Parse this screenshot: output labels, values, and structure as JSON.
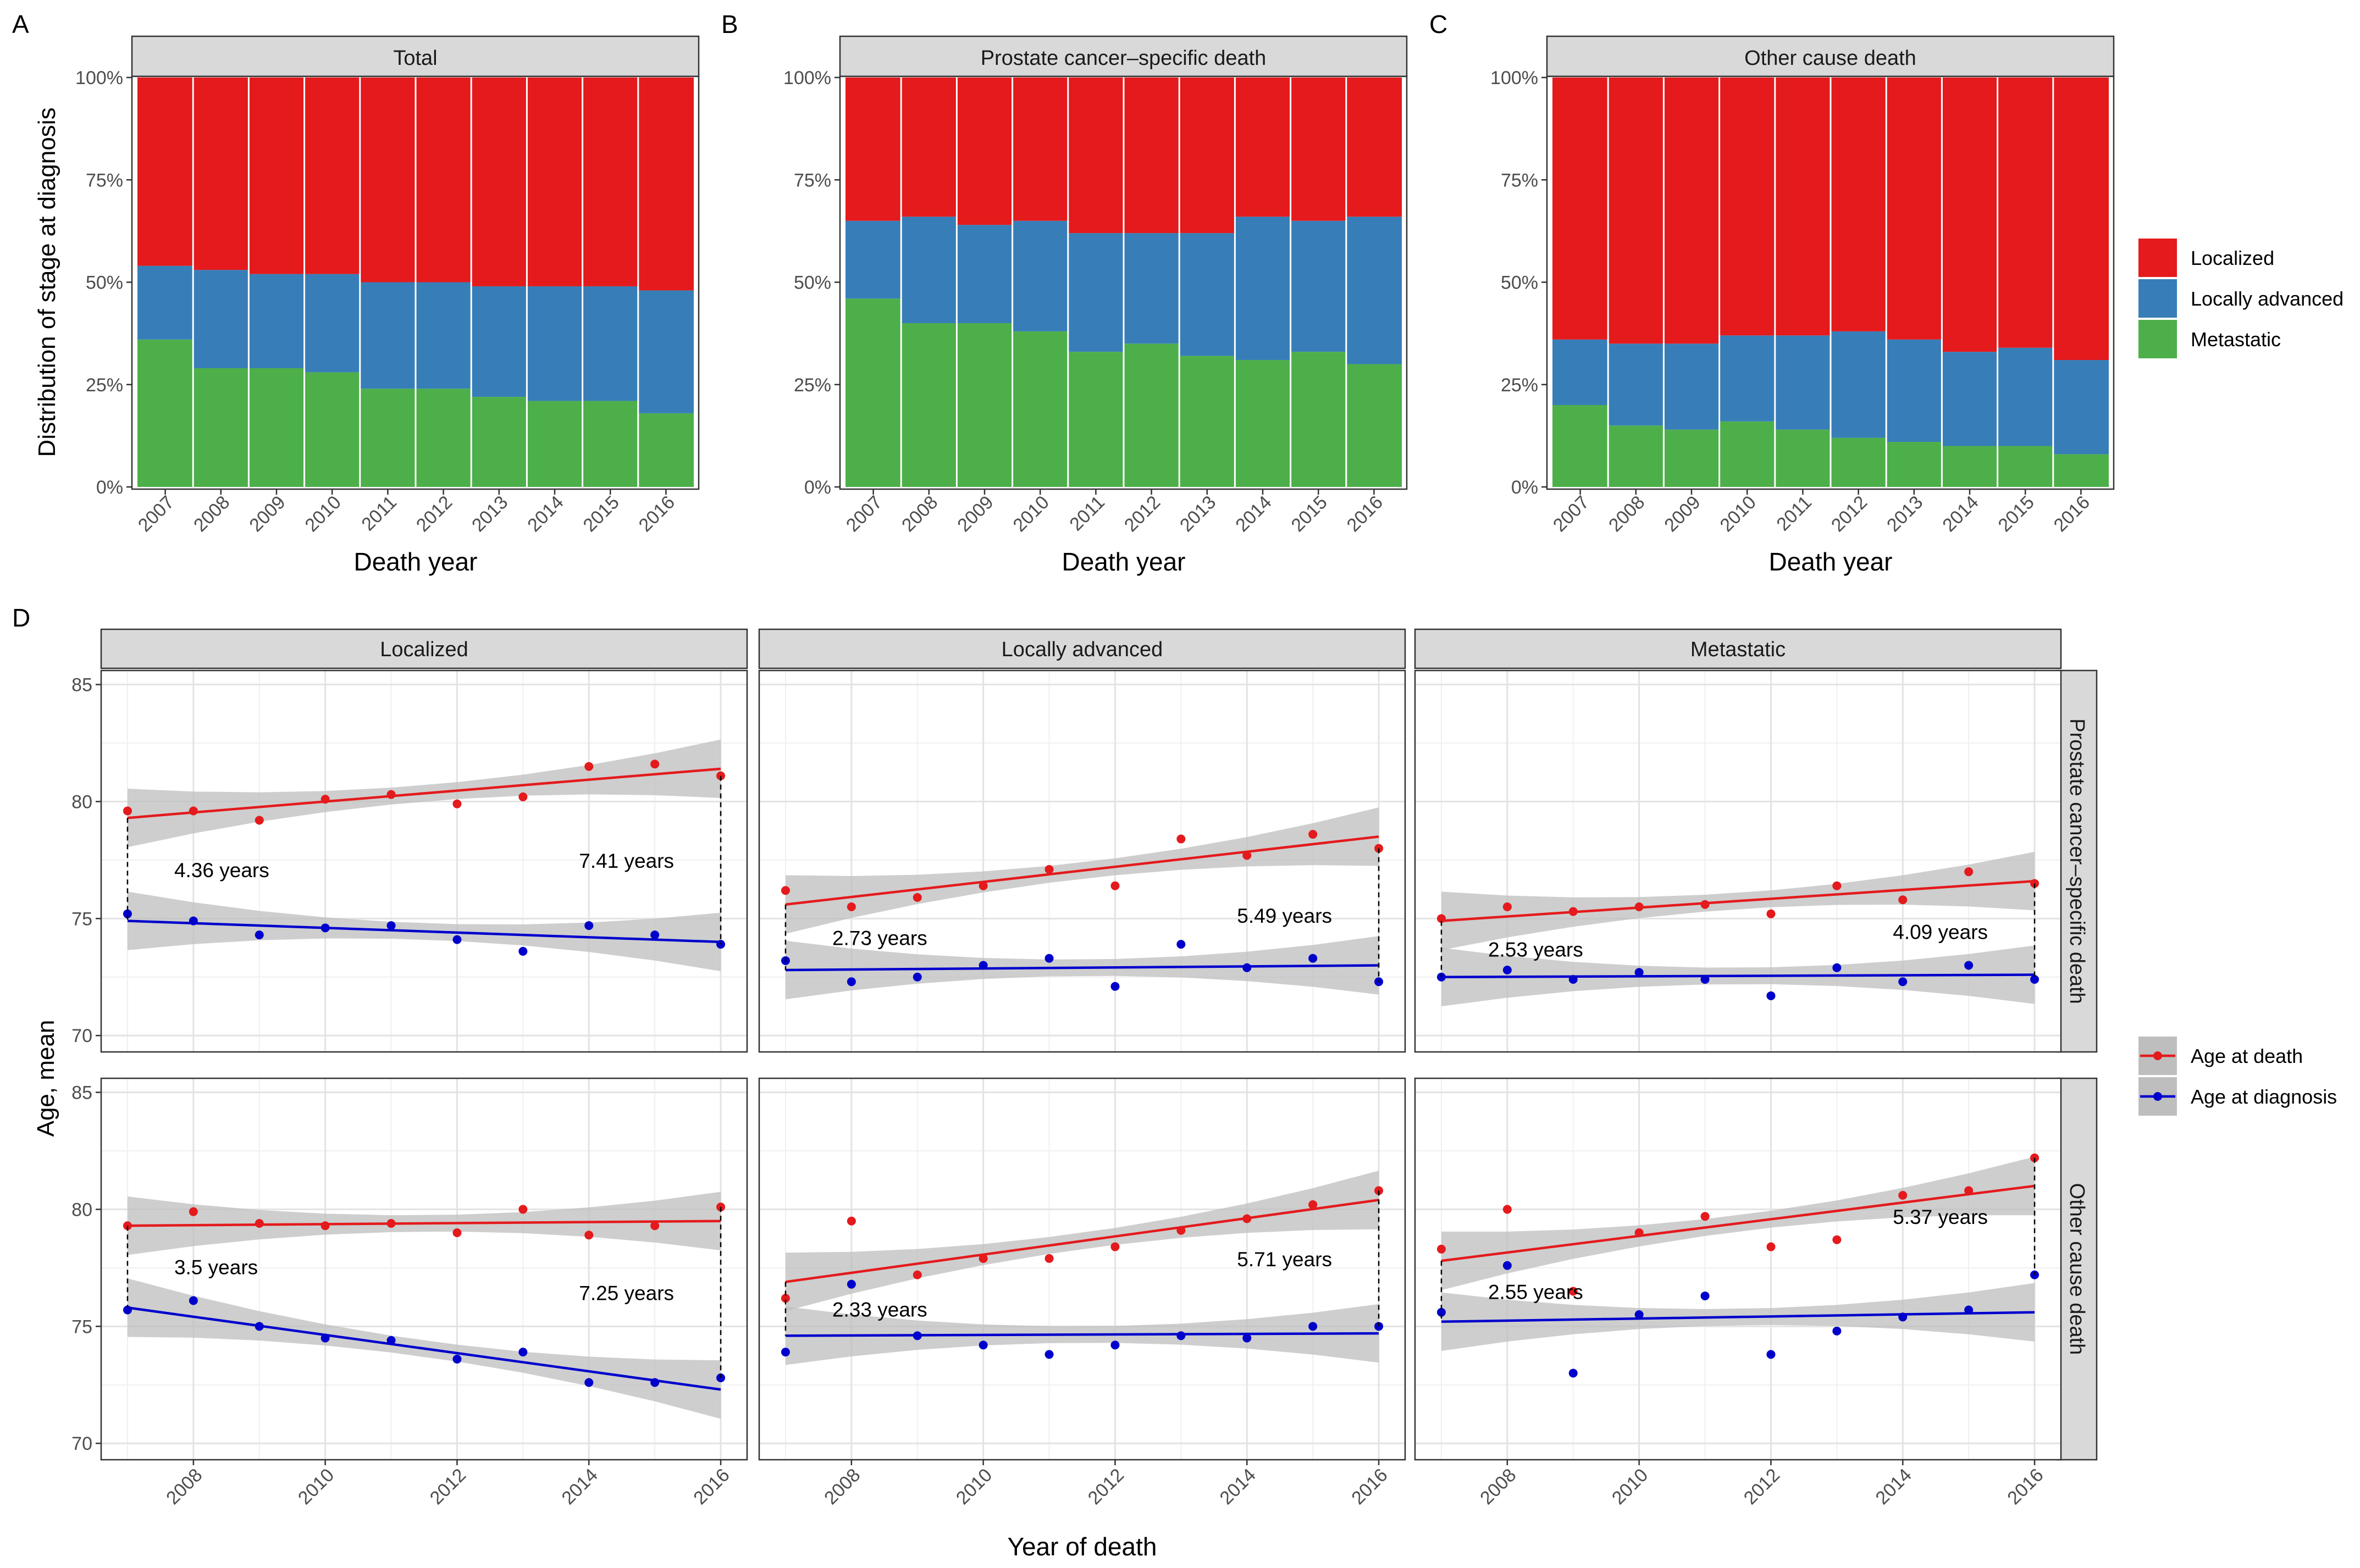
{
  "colors": {
    "localized": "#E41A1C",
    "locally_advanced": "#377EB8",
    "metastatic": "#4DAF4A",
    "age_at_death": "#E41A1C",
    "age_at_diagnosis": "#0000CD",
    "strip_bg": "#D9D9D9",
    "ci_band": "#BEBEBE"
  },
  "legends": {
    "stage": {
      "entries": [
        "Localized",
        "Locally advanced",
        "Metastatic"
      ]
    },
    "age": {
      "entries": [
        "Age at death",
        "Age at diagnosis"
      ]
    }
  },
  "chart_data": [
    {
      "type": "bar",
      "stacked": true,
      "panel_letter": "A",
      "facet": "Total",
      "xlabel": "Death year",
      "ylabel": "Distribution of stage at diagnosis",
      "yticks": [
        "0%",
        "25%",
        "50%",
        "75%",
        "100%"
      ],
      "ylim": [
        0,
        1
      ],
      "categories": [
        "2007",
        "2008",
        "2009",
        "2010",
        "2011",
        "2012",
        "2013",
        "2014",
        "2015",
        "2016"
      ],
      "series": [
        {
          "name": "Metastatic",
          "values": [
            0.36,
            0.29,
            0.29,
            0.28,
            0.24,
            0.24,
            0.22,
            0.21,
            0.21,
            0.18
          ]
        },
        {
          "name": "Locally advanced",
          "values": [
            0.18,
            0.24,
            0.23,
            0.24,
            0.26,
            0.26,
            0.27,
            0.28,
            0.28,
            0.3
          ]
        },
        {
          "name": "Localized",
          "values": [
            0.46,
            0.47,
            0.48,
            0.48,
            0.5,
            0.5,
            0.51,
            0.51,
            0.51,
            0.52
          ]
        }
      ]
    },
    {
      "type": "bar",
      "stacked": true,
      "panel_letter": "B",
      "facet": "Prostate cancer–specific death",
      "xlabel": "Death year",
      "yticks": [
        "0%",
        "25%",
        "50%",
        "75%",
        "100%"
      ],
      "ylim": [
        0,
        1
      ],
      "categories": [
        "2007",
        "2008",
        "2009",
        "2010",
        "2011",
        "2012",
        "2013",
        "2014",
        "2015",
        "2016"
      ],
      "series": [
        {
          "name": "Metastatic",
          "values": [
            0.46,
            0.4,
            0.4,
            0.38,
            0.33,
            0.35,
            0.32,
            0.31,
            0.33,
            0.3
          ]
        },
        {
          "name": "Locally advanced",
          "values": [
            0.19,
            0.26,
            0.24,
            0.27,
            0.29,
            0.27,
            0.3,
            0.35,
            0.32,
            0.36
          ]
        },
        {
          "name": "Localized",
          "values": [
            0.35,
            0.34,
            0.36,
            0.35,
            0.38,
            0.38,
            0.38,
            0.34,
            0.35,
            0.34
          ]
        }
      ]
    },
    {
      "type": "bar",
      "stacked": true,
      "panel_letter": "C",
      "facet": "Other cause death",
      "xlabel": "Death year",
      "yticks": [
        "0%",
        "25%",
        "50%",
        "75%",
        "100%"
      ],
      "ylim": [
        0,
        1
      ],
      "categories": [
        "2007",
        "2008",
        "2009",
        "2010",
        "2011",
        "2012",
        "2013",
        "2014",
        "2015",
        "2016"
      ],
      "series": [
        {
          "name": "Metastatic",
          "values": [
            0.2,
            0.15,
            0.14,
            0.16,
            0.14,
            0.12,
            0.11,
            0.1,
            0.1,
            0.08
          ]
        },
        {
          "name": "Locally advanced",
          "values": [
            0.16,
            0.2,
            0.21,
            0.21,
            0.23,
            0.26,
            0.25,
            0.23,
            0.24,
            0.23
          ]
        },
        {
          "name": "Localized",
          "values": [
            0.64,
            0.65,
            0.65,
            0.63,
            0.63,
            0.62,
            0.64,
            0.67,
            0.66,
            0.69
          ]
        }
      ]
    },
    {
      "type": "scatter",
      "panel_letter": "D",
      "xlabel": "Year of death",
      "ylabel": "Age, mean",
      "ylim": [
        69.3,
        85.6
      ],
      "yticks": [
        70,
        75,
        80,
        85
      ],
      "xlim": [
        2006.6,
        2016.4
      ],
      "xticks": [
        2008,
        2010,
        2012,
        2014,
        2016
      ],
      "col_facets": [
        "Localized",
        "Locally advanced",
        "Metastatic"
      ],
      "row_facets": [
        "Prostate cancer–specific death",
        "Other cause death"
      ],
      "panels": [
        {
          "row": 0,
          "col": 0,
          "death": {
            "y": [
              79.6,
              79.6,
              79.2,
              80.1,
              80.3,
              79.9,
              80.2,
              81.5,
              81.6,
              81.1
            ],
            "fit": [
              79.3,
              81.4
            ]
          },
          "diagnosis": {
            "y": [
              75.2,
              74.9,
              74.3,
              74.6,
              74.7,
              74.1,
              73.6,
              74.7,
              74.3,
              73.9
            ],
            "fit": [
              74.9,
              74.0
            ]
          },
          "labels": {
            "first": "4.36  years",
            "last": "7.41  years"
          }
        },
        {
          "row": 0,
          "col": 1,
          "death": {
            "y": [
              76.2,
              75.5,
              75.9,
              76.4,
              77.1,
              76.4,
              78.4,
              77.7,
              78.6,
              78.0
            ],
            "fit": [
              75.6,
              78.5
            ]
          },
          "diagnosis": {
            "y": [
              73.2,
              72.3,
              72.5,
              73.0,
              73.3,
              72.1,
              73.9,
              72.9,
              73.3,
              72.3
            ],
            "fit": [
              72.8,
              73.0
            ]
          },
          "labels": {
            "first": "2.73  years",
            "last": "5.49  years"
          }
        },
        {
          "row": 0,
          "col": 2,
          "death": {
            "y": [
              75.0,
              75.5,
              75.3,
              75.5,
              75.6,
              75.2,
              76.4,
              75.8,
              77.0,
              76.5
            ],
            "fit": [
              74.9,
              76.6
            ]
          },
          "diagnosis": {
            "y": [
              72.5,
              72.8,
              72.4,
              72.7,
              72.4,
              71.7,
              72.9,
              72.3,
              73.0,
              72.4
            ],
            "fit": [
              72.5,
              72.6
            ]
          },
          "labels": {
            "first": "2.53  years",
            "last": "4.09  years"
          }
        },
        {
          "row": 1,
          "col": 0,
          "death": {
            "y": [
              79.3,
              79.9,
              79.4,
              79.3,
              79.4,
              79.0,
              80.0,
              78.9,
              79.3,
              80.1
            ],
            "fit": [
              79.3,
              79.5
            ]
          },
          "diagnosis": {
            "y": [
              75.7,
              76.1,
              75.0,
              74.5,
              74.4,
              73.6,
              73.9,
              72.6,
              72.6,
              72.8
            ],
            "fit": [
              75.8,
              72.3
            ]
          },
          "labels": {
            "first": "3.5  years",
            "last": "7.25  years"
          }
        },
        {
          "row": 1,
          "col": 1,
          "death": {
            "y": [
              76.2,
              79.5,
              77.2,
              77.9,
              77.9,
              78.4,
              79.1,
              79.6,
              80.2,
              80.8
            ],
            "fit": [
              76.9,
              80.4
            ]
          },
          "diagnosis": {
            "y": [
              73.9,
              76.8,
              74.6,
              74.2,
              73.8,
              74.2,
              74.6,
              74.5,
              75.0,
              75.0
            ],
            "fit": [
              74.6,
              74.7
            ]
          },
          "labels": {
            "first": "2.33  years",
            "last": "5.71  years"
          }
        },
        {
          "row": 1,
          "col": 2,
          "death": {
            "y": [
              78.3,
              80.0,
              76.5,
              79.0,
              79.7,
              78.4,
              78.7,
              80.6,
              80.8,
              82.2
            ],
            "fit": [
              77.8,
              81.0
            ]
          },
          "diagnosis": {
            "y": [
              75.6,
              77.6,
              73.0,
              75.5,
              76.3,
              73.8,
              74.8,
              75.4,
              75.7,
              77.2
            ],
            "fit": [
              75.2,
              75.6
            ]
          },
          "labels": {
            "first": "2.55  years",
            "last": "5.37  years"
          }
        }
      ]
    }
  ]
}
